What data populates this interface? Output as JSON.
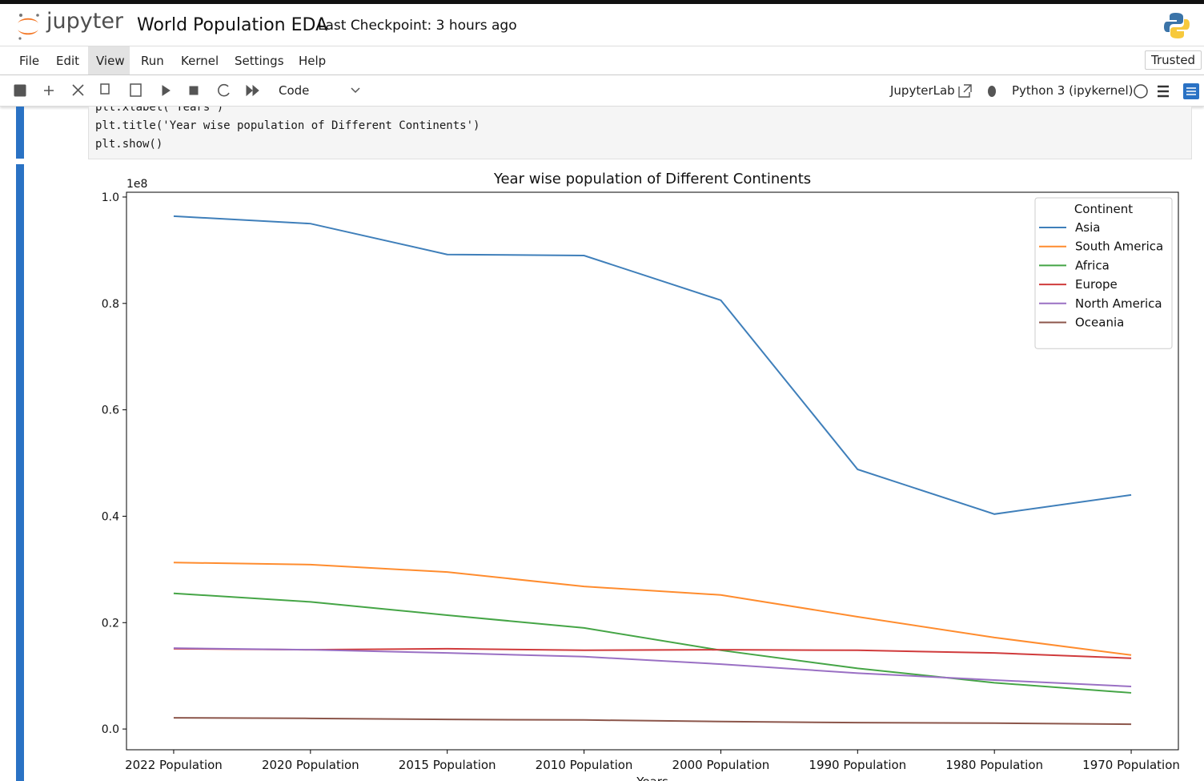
{
  "header": {
    "logo": "jupyter",
    "title": "World Population EDA",
    "checkpoint": "Last Checkpoint: 3 hours ago"
  },
  "menu": [
    "File",
    "Edit",
    "View",
    "Run",
    "Kernel",
    "Settings",
    "Help"
  ],
  "trusted": "Trusted",
  "toolbar": {
    "cell_type": "Code",
    "jupyterlab": "JupyterLab",
    "kernel": "Python 3 (ipykernel)"
  },
  "code": [
    "plt.xlabel('Years')",
    "plt.title('Year wise population of Different Continents')",
    "plt.show()"
  ],
  "chart_data": {
    "type": "line",
    "title": "Year wise population of Different Continents",
    "xlabel": "Years",
    "offset_label": "1e8",
    "categories": [
      "2022 Population",
      "2020 Population",
      "2015 Population",
      "2010 Population",
      "2000 Population",
      "1990 Population",
      "1980 Population",
      "1970 Population"
    ],
    "ylim": [
      -0.039,
      1.009
    ],
    "yticks": [
      {
        "value": 0,
        "label": "0.0"
      },
      0.2,
      0.4,
      0.6,
      0.8,
      {
        "value": 1,
        "label": "1.0"
      }
    ],
    "legend_title": "Continent",
    "legend": "upper right",
    "grid": false,
    "series": [
      {
        "name": "Asia",
        "color": "#3f7fba",
        "values": [
          0.964,
          0.95,
          0.892,
          0.89,
          0.806,
          0.488,
          0.404,
          0.44
        ]
      },
      {
        "name": "South America",
        "color": "#ff8c2e",
        "values": [
          0.313,
          0.309,
          0.295,
          0.268,
          0.252,
          0.211,
          0.172,
          0.139
        ]
      },
      {
        "name": "Africa",
        "color": "#45a546",
        "values": [
          0.255,
          0.239,
          0.214,
          0.19,
          0.148,
          0.114,
          0.087,
          0.068
        ]
      },
      {
        "name": "Europe",
        "color": "#d03b3c",
        "values": [
          0.151,
          0.149,
          0.151,
          0.148,
          0.149,
          0.148,
          0.143,
          0.133
        ]
      },
      {
        "name": "North America",
        "color": "#9a70c4",
        "values": [
          0.152,
          0.149,
          0.143,
          0.136,
          0.122,
          0.105,
          0.092,
          0.08
        ]
      },
      {
        "name": "Oceania",
        "color": "#8c564b",
        "values": [
          0.021,
          0.02,
          0.018,
          0.017,
          0.014,
          0.012,
          0.011,
          0.009
        ]
      }
    ]
  }
}
